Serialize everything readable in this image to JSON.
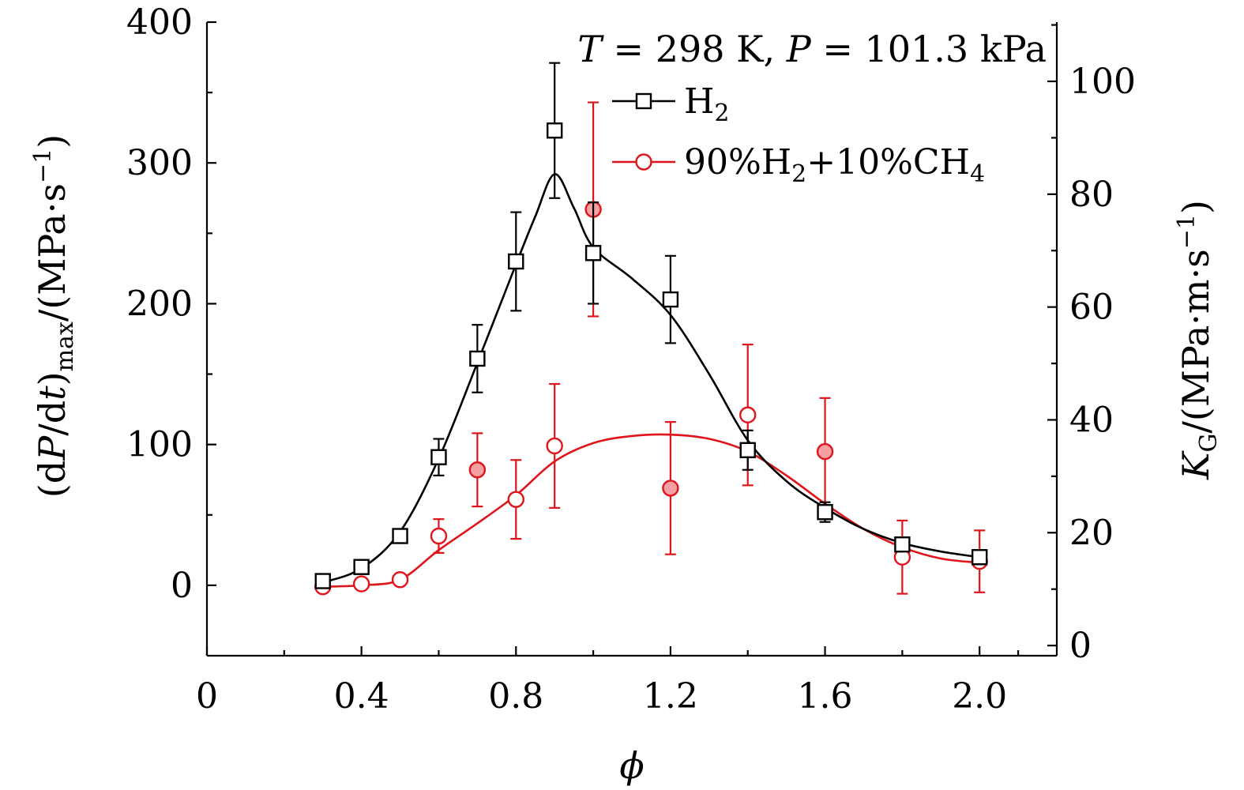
{
  "chart_data": {
    "type": "scatter",
    "title": "",
    "annotation": {
      "T_symbol": "T",
      "T_text": " = 298 K, ",
      "P_symbol": "P",
      "P_text": " = 101.3 kPa"
    },
    "xlabel": "ϕ",
    "ylabel": {
      "pre": "(d",
      "P": "P",
      "mid": "/d",
      "t": "t",
      "close": ")",
      "sub": "max",
      "post": "/(MPa·s",
      "sup": "−1",
      "end": ")"
    },
    "y2label": {
      "K": "K",
      "sub": "G",
      "post": "/(MPa·m·s",
      "sup": "−1",
      "end": ")"
    },
    "xlim": [
      0,
      2.2
    ],
    "ylim": [
      -50,
      400
    ],
    "y2lim": [
      -1.8,
      110.5
    ],
    "x_ticks": [
      0,
      0.4,
      0.8,
      1.2,
      1.6,
      2.0
    ],
    "x_tick_labels": [
      "0",
      "0.4",
      "0.8",
      "1.2",
      "1.6",
      "2.0"
    ],
    "y_ticks": [
      0,
      100,
      200,
      300,
      400
    ],
    "y_tick_labels": [
      "0",
      "100",
      "200",
      "300",
      "400"
    ],
    "y2_ticks": [
      0,
      20,
      40,
      60,
      80,
      100
    ],
    "y2_tick_labels": [
      "0",
      "20",
      "40",
      "60",
      "80",
      "100"
    ],
    "legend_position": "top-right",
    "series": [
      {
        "name": "H",
        "name_sub": "2",
        "name_rest": "",
        "color": "#000000",
        "marker": "square",
        "x": [
          0.3,
          0.4,
          0.5,
          0.6,
          0.7,
          0.8,
          0.9,
          1.0,
          1.2,
          1.4,
          1.6,
          1.8,
          2.0
        ],
        "y": [
          3,
          13,
          35,
          91,
          161,
          230,
          323,
          236,
          203,
          96,
          52,
          29,
          20
        ],
        "err": [
          0,
          0,
          0,
          13,
          24,
          35,
          48,
          36,
          31,
          14,
          7,
          0,
          0
        ],
        "fit_x": [
          0.3,
          0.4,
          0.5,
          0.6,
          0.7,
          0.8,
          0.85,
          0.9,
          0.95,
          1.0,
          1.1,
          1.2,
          1.3,
          1.4,
          1.5,
          1.6,
          1.7,
          1.8,
          1.9,
          2.0
        ],
        "fit_y": [
          2,
          12,
          38,
          90,
          158,
          228,
          262,
          292,
          268,
          240,
          218,
          192,
          150,
          103,
          74,
          55,
          40,
          30,
          24,
          20
        ]
      },
      {
        "name": "90%H",
        "name_sub": "2",
        "name_rest": "+10%CH",
        "name_sub2": "4",
        "color": "#e0141b",
        "marker": "circle",
        "x": [
          0.3,
          0.4,
          0.5,
          0.6,
          0.7,
          0.8,
          0.9,
          1.0,
          1.2,
          1.4,
          1.6,
          1.8,
          2.0
        ],
        "y": [
          -1,
          1,
          4,
          35,
          82,
          61,
          99,
          267,
          69,
          121,
          95,
          20,
          17
        ],
        "err": [
          0,
          0,
          0,
          12,
          26,
          28,
          44,
          76,
          47,
          50,
          38,
          26,
          22
        ],
        "filled": [
          false,
          false,
          false,
          false,
          true,
          false,
          false,
          true,
          true,
          false,
          true,
          false,
          false
        ],
        "fit_x": [
          0.3,
          0.4,
          0.5,
          0.6,
          0.7,
          0.8,
          0.9,
          1.0,
          1.1,
          1.2,
          1.3,
          1.4,
          1.5,
          1.6,
          1.7,
          1.8,
          1.9,
          2.0
        ],
        "fit_y": [
          -1,
          0,
          4,
          25,
          44,
          64,
          88,
          101,
          106,
          107,
          104,
          95,
          78,
          58,
          40,
          27,
          19,
          16
        ]
      }
    ]
  }
}
